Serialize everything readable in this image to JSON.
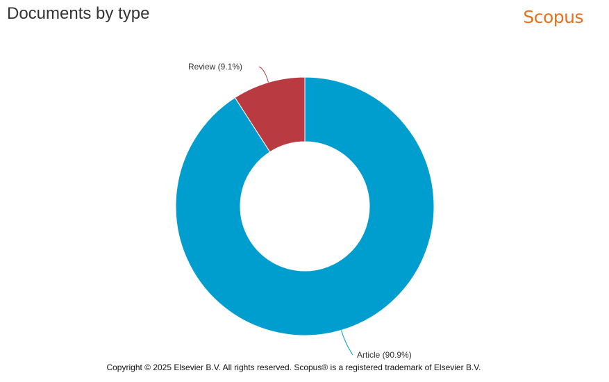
{
  "header": {
    "title": "Documents by type",
    "brand": "Scopus",
    "brand_color": "#e9711c"
  },
  "chart_data": {
    "type": "pie",
    "donut": true,
    "categories": [
      "Review",
      "Article"
    ],
    "values": [
      9.1,
      90.9
    ],
    "labels": [
      "Review (9.1%)",
      "Article (90.9%)"
    ],
    "colors": [
      "#b93b41",
      "#009ecf"
    ],
    "legend": "none"
  },
  "footer": {
    "copyright": "Copyright © 2025 Elsevier B.V. All rights reserved. Scopus® is a registered trademark of Elsevier B.V."
  }
}
